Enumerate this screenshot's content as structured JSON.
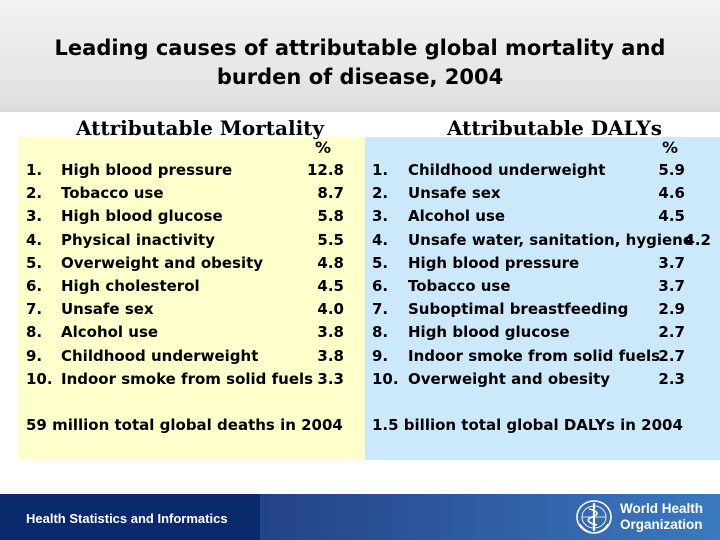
{
  "title": {
    "line1": "Leading causes of attributable global mortality and",
    "line2": "burden of disease, 2004"
  },
  "mortality": {
    "heading": "Attributable Mortality",
    "unit": "%",
    "items": [
      {
        "num": "1.",
        "name": "High blood pressure",
        "value": "12.8"
      },
      {
        "num": "2.",
        "name": "Tobacco use",
        "value": "8.7"
      },
      {
        "num": "3.",
        "name": "High blood glucose",
        "value": "5.8"
      },
      {
        "num": "4.",
        "name": "Physical inactivity",
        "value": "5.5"
      },
      {
        "num": "5.",
        "name": "Overweight and obesity",
        "value": "4.8"
      },
      {
        "num": "6.",
        "name": "High cholesterol",
        "value": "4.5"
      },
      {
        "num": "7.",
        "name": "Unsafe sex",
        "value": "4.0"
      },
      {
        "num": "8.",
        "name": "Alcohol use",
        "value": "3.8"
      },
      {
        "num": "9.",
        "name": "Childhood underweight",
        "value": "3.8"
      },
      {
        "num": "10.",
        "name": "Indoor smoke from solid fuels",
        "value": "3.3"
      }
    ],
    "total": "59 million total global deaths in 2004"
  },
  "dalys": {
    "heading": "Attributable DALYs",
    "unit": "%",
    "items": [
      {
        "num": "1.",
        "name": "Childhood underweight",
        "value": "5.9"
      },
      {
        "num": "2.",
        "name": "Unsafe sex",
        "value": "4.6"
      },
      {
        "num": "3.",
        "name": "Alcohol use",
        "value": "4.5"
      },
      {
        "num": "4.",
        "name": "Unsafe water, sanitation, hygiene",
        "value": "4.2"
      },
      {
        "num": "5.",
        "name": "High blood pressure",
        "value": "3.7"
      },
      {
        "num": "6.",
        "name": "Tobacco use",
        "value": "3.7"
      },
      {
        "num": "7.",
        "name": "Suboptimal breastfeeding",
        "value": "2.9"
      },
      {
        "num": "8.",
        "name": "High blood glucose",
        "value": "2.7"
      },
      {
        "num": "9.",
        "name": "Indoor smoke from solid fuels",
        "value": "2.7"
      },
      {
        "num": "10.",
        "name": "Overweight and obesity",
        "value": "2.3"
      }
    ],
    "total": "1.5 billion total global DALYs in 2004"
  },
  "footer": {
    "label": "Health Statistics and Informatics",
    "org_line1": "World Health",
    "org_line2": "Organization",
    "logo_icon": "who-emblem-icon"
  },
  "colors": {
    "mortality_panel": "#ffffcc",
    "dalys_panel": "#cce9fb",
    "footer": "#0b2a6e"
  }
}
